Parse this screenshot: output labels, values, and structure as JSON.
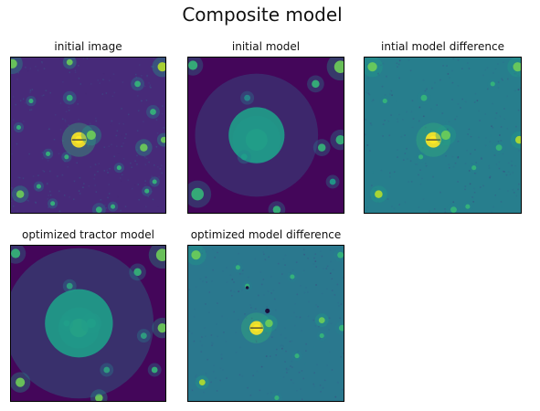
{
  "figure": {
    "title": "Composite model"
  },
  "chart_data": [
    {
      "type": "heatmap",
      "title": "initial image",
      "colormap": "viridis",
      "background": "#472a79",
      "noise": true,
      "sources": [
        [
          0.44,
          0.53,
          5,
          1.0
        ],
        [
          0.52,
          0.5,
          3,
          0.6
        ],
        [
          0.98,
          0.06,
          3,
          0.7
        ],
        [
          0.01,
          0.04,
          3,
          0.5
        ],
        [
          0.38,
          0.03,
          2,
          0.5
        ],
        [
          0.82,
          0.17,
          2,
          0.4
        ],
        [
          0.38,
          0.26,
          2,
          0.45
        ],
        [
          0.13,
          0.28,
          1.5,
          0.35
        ],
        [
          0.92,
          0.35,
          2,
          0.4
        ],
        [
          0.05,
          0.45,
          1.5,
          0.3
        ],
        [
          0.36,
          0.64,
          1.5,
          0.35
        ],
        [
          0.86,
          0.58,
          2.5,
          0.6
        ],
        [
          0.99,
          0.53,
          2,
          0.5
        ],
        [
          0.7,
          0.71,
          1.5,
          0.35
        ],
        [
          0.24,
          0.62,
          1.5,
          0.35
        ],
        [
          0.06,
          0.88,
          2.5,
          0.6
        ],
        [
          0.88,
          0.86,
          1.5,
          0.3
        ],
        [
          0.57,
          0.98,
          2,
          0.45
        ],
        [
          0.66,
          0.96,
          1.5,
          0.35
        ],
        [
          0.93,
          0.8,
          1.5,
          0.3
        ],
        [
          0.18,
          0.83,
          1.5,
          0.3
        ],
        [
          0.27,
          0.94,
          1.5,
          0.3
        ]
      ]
    },
    {
      "type": "heatmap",
      "title": "initial model",
      "colormap": "viridis",
      "background": "#44065a",
      "noise": false,
      "sources": [
        [
          0.44,
          0.53,
          7,
          0.45
        ],
        [
          0.98,
          0.06,
          4,
          0.5
        ],
        [
          0.03,
          0.05,
          3,
          0.4
        ],
        [
          0.82,
          0.17,
          2.5,
          0.3
        ],
        [
          0.38,
          0.26,
          2,
          0.25
        ],
        [
          0.98,
          0.53,
          3,
          0.35
        ],
        [
          0.06,
          0.88,
          4,
          0.45
        ],
        [
          0.57,
          0.98,
          2.5,
          0.3
        ],
        [
          0.86,
          0.58,
          2.5,
          0.35
        ],
        [
          0.93,
          0.8,
          2,
          0.25
        ],
        [
          0.44,
          0.5,
          18,
          0.12
        ],
        [
          0.36,
          0.64,
          2,
          0.2
        ]
      ]
    },
    {
      "type": "heatmap",
      "title": "intial model difference",
      "colormap": "viridis",
      "background": "#277e8d",
      "noise": true,
      "sources": [
        [
          0.44,
          0.53,
          5,
          1.0
        ],
        [
          0.52,
          0.5,
          3,
          0.65
        ],
        [
          0.98,
          0.06,
          3,
          0.55
        ],
        [
          0.05,
          0.06,
          3,
          0.5
        ],
        [
          0.38,
          0.26,
          2,
          0.35
        ],
        [
          0.13,
          0.28,
          1.5,
          0.3
        ],
        [
          0.99,
          0.53,
          2.5,
          0.7
        ],
        [
          0.86,
          0.58,
          2,
          0.45
        ],
        [
          0.7,
          0.71,
          1.5,
          0.3
        ],
        [
          0.09,
          0.88,
          2.5,
          0.8
        ],
        [
          0.57,
          0.98,
          2,
          0.4
        ],
        [
          0.66,
          0.96,
          1.5,
          0.3
        ],
        [
          0.82,
          0.17,
          1.5,
          0.3
        ],
        [
          0.36,
          0.64,
          1.5,
          0.3
        ]
      ]
    },
    {
      "type": "heatmap",
      "title": "optimized tractor model",
      "colormap": "viridis",
      "background": "#44065a",
      "noise": false,
      "sources": [
        [
          0.44,
          0.53,
          6,
          0.55
        ],
        [
          0.52,
          0.5,
          3,
          0.45
        ],
        [
          0.98,
          0.06,
          4,
          0.55
        ],
        [
          0.03,
          0.05,
          3,
          0.45
        ],
        [
          0.38,
          0.26,
          2,
          0.4
        ],
        [
          0.82,
          0.17,
          2.5,
          0.4
        ],
        [
          0.98,
          0.53,
          3,
          0.5
        ],
        [
          0.36,
          0.5,
          2,
          0.35
        ],
        [
          0.06,
          0.88,
          3,
          0.5
        ],
        [
          0.57,
          0.98,
          2.5,
          0.55
        ],
        [
          0.86,
          0.58,
          2,
          0.35
        ],
        [
          0.93,
          0.8,
          2,
          0.3
        ],
        [
          0.62,
          0.8,
          2,
          0.3
        ],
        [
          0.44,
          0.5,
          22,
          0.14
        ]
      ]
    },
    {
      "type": "heatmap",
      "title": "optimized model difference",
      "colormap": "viridis",
      "background": "#2a788e",
      "noise": true,
      "sources": [
        [
          0.44,
          0.53,
          4.5,
          1.0
        ],
        [
          0.52,
          0.5,
          2.5,
          0.6
        ],
        [
          0.05,
          0.06,
          3,
          0.55
        ],
        [
          0.98,
          0.06,
          2,
          0.4
        ],
        [
          0.38,
          0.26,
          1.5,
          0.3
        ],
        [
          0.86,
          0.48,
          2,
          0.5
        ],
        [
          0.99,
          0.53,
          2,
          0.45
        ],
        [
          0.09,
          0.88,
          2,
          0.7
        ],
        [
          0.86,
          0.58,
          1.5,
          0.4
        ],
        [
          0.7,
          0.71,
          1.5,
          0.3
        ],
        [
          0.57,
          0.98,
          1.5,
          0.3
        ],
        [
          0.32,
          0.14,
          1.5,
          0.3
        ],
        [
          0.67,
          0.2,
          1.5,
          0.3
        ]
      ],
      "dark_sources": [
        [
          0.51,
          0.42,
          1.5
        ],
        [
          0.38,
          0.27,
          1
        ]
      ]
    }
  ]
}
